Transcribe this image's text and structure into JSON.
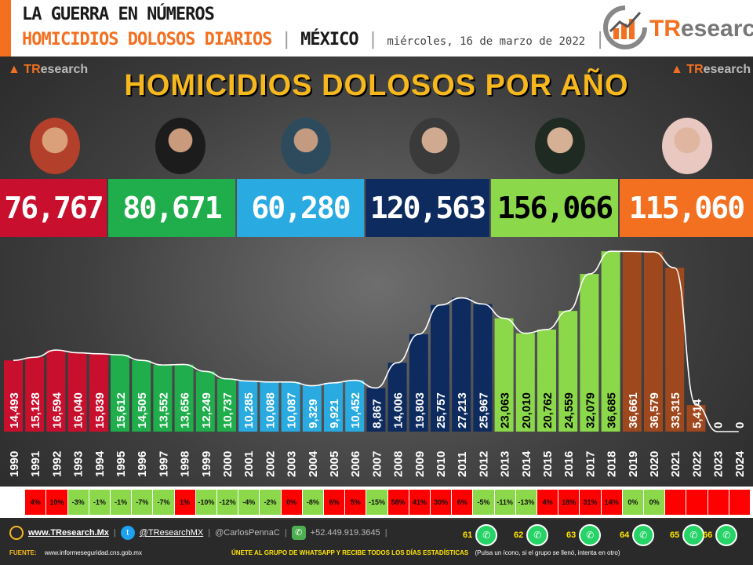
{
  "header": {
    "line1": "LA GUERRA EN NÚMEROS",
    "line2_title": "HOMICIDIOS DOLOSOS DIARIOS",
    "sep": "|",
    "country": "MÉXICO",
    "date": "miércoles, 16 de marzo de 2022",
    "logo": "TResearch",
    "logo_tr": "TR",
    "logo_rest": "esearch"
  },
  "main_title": "HOMICIDIOS DOLOSOS POR AÑO",
  "mini_logo": {
    "tr": "TR",
    "rest": "esearch"
  },
  "totals": [
    {
      "value": "76,767",
      "bg": "#c8102e",
      "fg": "#ffffff"
    },
    {
      "value": "80,671",
      "bg": "#1fae4b",
      "fg": "#ffffff"
    },
    {
      "value": "60,280",
      "bg": "#29abe2",
      "fg": "#ffffff"
    },
    {
      "value": "120,563",
      "bg": "#0d2b5e",
      "fg": "#ffffff"
    },
    {
      "value": "156,066",
      "bg": "#8cd84b",
      "fg": "#000000"
    },
    {
      "value": "115,060",
      "bg": "#f37021",
      "fg": "#ffffff"
    }
  ],
  "chart_data": {
    "type": "bar",
    "title": "HOMICIDIOS DOLOSOS POR AÑO",
    "categories": [
      "1990",
      "1991",
      "1992",
      "1993",
      "1994",
      "1995",
      "1996",
      "1997",
      "1998",
      "1999",
      "2000",
      "2001",
      "2002",
      "2003",
      "2004",
      "2005",
      "2006",
      "2007",
      "2008",
      "2009",
      "2010",
      "2011",
      "2012",
      "2013",
      "2014",
      "2015",
      "2016",
      "2017",
      "2018",
      "2019",
      "2020",
      "2021",
      "2022",
      "2023",
      "2024"
    ],
    "values": [
      14493,
      15128,
      16594,
      16040,
      15839,
      15612,
      14505,
      13552,
      13656,
      12249,
      10737,
      10285,
      10088,
      10087,
      9329,
      9921,
      10452,
      8867,
      14006,
      19803,
      25757,
      27213,
      25967,
      23063,
      20010,
      20762,
      24559,
      32079,
      36685,
      36661,
      36579,
      33315,
      5414,
      0,
      0
    ],
    "labels": [
      "14,493",
      "15,128",
      "16,594",
      "16,040",
      "15,839",
      "15,612",
      "14,505",
      "13,552",
      "13,656",
      "12,249",
      "10,737",
      "10,285",
      "10,088",
      "10,087",
      "9,329",
      "9,921",
      "10,452",
      "8,867",
      "14,006",
      "19,803",
      "25,757",
      "27,213",
      "25,967",
      "23,063",
      "20,010",
      "20,762",
      "24,559",
      "32,079",
      "36,685",
      "36,661",
      "36,579",
      "33,315",
      "5,414",
      "0",
      "0"
    ],
    "colors": [
      "#c8102e",
      "#c8102e",
      "#c8102e",
      "#c8102e",
      "#c8102e",
      "#1fae4b",
      "#1fae4b",
      "#1fae4b",
      "#1fae4b",
      "#1fae4b",
      "#1fae4b",
      "#29abe2",
      "#29abe2",
      "#29abe2",
      "#29abe2",
      "#29abe2",
      "#29abe2",
      "#0d2b5e",
      "#0d2b5e",
      "#0d2b5e",
      "#0d2b5e",
      "#0d2b5e",
      "#0d2b5e",
      "#8cd84b",
      "#8cd84b",
      "#8cd84b",
      "#8cd84b",
      "#8cd84b",
      "#8cd84b",
      "#a0481d",
      "#a0481d",
      "#a0481d",
      "#a0481d",
      "#a0481d",
      "#a0481d"
    ],
    "label_colors": [
      "#fff",
      "#fff",
      "#fff",
      "#fff",
      "#fff",
      "#fff",
      "#fff",
      "#fff",
      "#fff",
      "#fff",
      "#fff",
      "#fff",
      "#fff",
      "#fff",
      "#fff",
      "#fff",
      "#fff",
      "#fff",
      "#fff",
      "#fff",
      "#fff",
      "#fff",
      "#fff",
      "#000",
      "#000",
      "#000",
      "#000",
      "#000",
      "#000",
      "#fff",
      "#fff",
      "#fff",
      "#fff",
      "#fff",
      "#fff"
    ],
    "ylim": [
      0,
      38000
    ],
    "trend_line": true
  },
  "pct_changes": [
    {
      "text": "",
      "bg": "#ffffff"
    },
    {
      "text": "4%",
      "bg": "#ff0000"
    },
    {
      "text": "10%",
      "bg": "#ff0000"
    },
    {
      "text": "-3%",
      "bg": "#8cd84b"
    },
    {
      "text": "-1%",
      "bg": "#8cd84b"
    },
    {
      "text": "-1%",
      "bg": "#8cd84b"
    },
    {
      "text": "-7%",
      "bg": "#8cd84b"
    },
    {
      "text": "-7%",
      "bg": "#8cd84b"
    },
    {
      "text": "1%",
      "bg": "#ff0000"
    },
    {
      "text": "-10%",
      "bg": "#8cd84b"
    },
    {
      "text": "-12%",
      "bg": "#8cd84b"
    },
    {
      "text": "-4%",
      "bg": "#8cd84b"
    },
    {
      "text": "-2%",
      "bg": "#8cd84b"
    },
    {
      "text": "0%",
      "bg": "#ff0000"
    },
    {
      "text": "-8%",
      "bg": "#8cd84b"
    },
    {
      "text": "6%",
      "bg": "#ff0000"
    },
    {
      "text": "5%",
      "bg": "#ff0000"
    },
    {
      "text": "-15%",
      "bg": "#8cd84b"
    },
    {
      "text": "58%",
      "bg": "#ff0000"
    },
    {
      "text": "41%",
      "bg": "#ff0000"
    },
    {
      "text": "30%",
      "bg": "#ff0000"
    },
    {
      "text": "6%",
      "bg": "#ff0000"
    },
    {
      "text": "-5%",
      "bg": "#8cd84b"
    },
    {
      "text": "-11%",
      "bg": "#8cd84b"
    },
    {
      "text": "-13%",
      "bg": "#8cd84b"
    },
    {
      "text": "4%",
      "bg": "#ff0000"
    },
    {
      "text": "18%",
      "bg": "#ff0000"
    },
    {
      "text": "31%",
      "bg": "#ff0000"
    },
    {
      "text": "14%",
      "bg": "#ff0000"
    },
    {
      "text": "0%",
      "bg": "#8cd84b"
    },
    {
      "text": "0%",
      "bg": "#8cd84b"
    },
    {
      "text": "",
      "bg": "#ff0000"
    },
    {
      "text": "",
      "bg": "#ff0000"
    },
    {
      "text": "",
      "bg": "#ff0000"
    },
    {
      "text": "",
      "bg": "#ff0000"
    }
  ],
  "footer": {
    "web": "www.TResearch.Mx",
    "twitter": "@TResearchMX",
    "handle": "@CarlosPennaC",
    "phone": "+52.449.919.3645",
    "fuente_label": "FUENTE:",
    "fuente_url": "www.informeseguridad.cns.gob.mx",
    "join_text": "ÚNETE AL GRUPO DE WHATSAPP Y RECIBE TODOS LOS DÍAS ESTADÍSTICAS",
    "join_note": "(Pulsa un ícono, si el grupo se llenó, intenta en otro)",
    "whatsapp_groups": [
      "61",
      "62",
      "63",
      "64",
      "65",
      "66"
    ],
    "sep": "|"
  }
}
